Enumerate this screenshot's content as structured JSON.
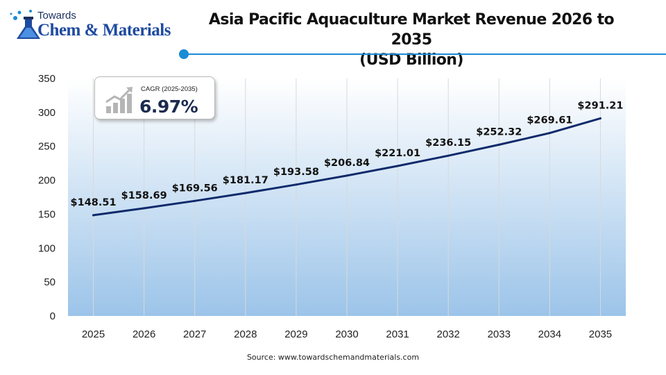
{
  "brand": {
    "line1": "Towards",
    "line2": "Chem & Materials"
  },
  "title_lines": [
    "Asia Pacific Aquaculture Market Revenue 2026 to 2035",
    "(USD Billion)"
  ],
  "cagr": {
    "label": "CAGR (2025-2035)",
    "value": "6.97%"
  },
  "source": "Source: www.towardschemandmaterials.com",
  "colors": {
    "line": "#0f2a6b",
    "accent": "#1b8bd6",
    "area_top": "#ffffff",
    "area_bottom": "#9cc4e9",
    "grid": "#d9d9d9"
  },
  "chart_data": {
    "type": "line",
    "title": "Asia Pacific Aquaculture Market Revenue 2026 to 2035 (USD Billion)",
    "xlabel": "",
    "ylabel": "",
    "x": [
      "2025",
      "2026",
      "2027",
      "2028",
      "2029",
      "2030",
      "2031",
      "2032",
      "2033",
      "2034",
      "2035"
    ],
    "y": [
      148.51,
      158.69,
      169.56,
      181.17,
      193.58,
      206.84,
      221.01,
      236.15,
      252.32,
      269.61,
      291.21
    ],
    "data_labels": [
      "$148.51",
      "$158.69",
      "$169.56",
      "$181.17",
      "$193.58",
      "$206.84",
      "$221.01",
      "$236.15",
      "$252.32",
      "$269.61",
      "$291.21"
    ],
    "ylim": [
      0,
      350
    ],
    "yticks": [
      0,
      50,
      100,
      150,
      200,
      250,
      300,
      350
    ],
    "grid": "vertical",
    "legend": "none"
  }
}
